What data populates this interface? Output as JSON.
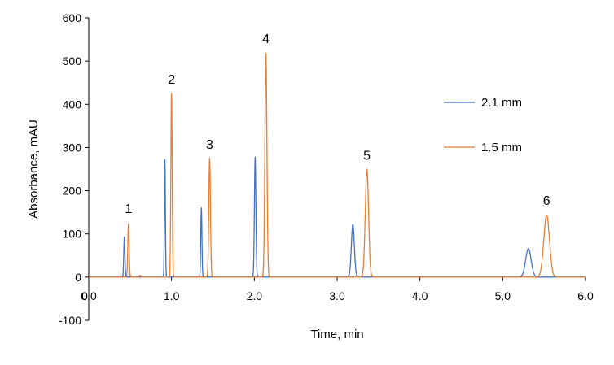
{
  "chart_data": {
    "type": "line",
    "title": "",
    "xlabel": "Time, min",
    "ylabel": "Absorbance, mAU",
    "xlim": [
      0,
      6
    ],
    "ylim": [
      -100,
      600
    ],
    "x_ticks": [
      "0.0",
      "1.0",
      "2.0",
      "3.0",
      "4.0",
      "5.0",
      "6.0"
    ],
    "y_ticks": [
      "-100",
      "0",
      "100",
      "200",
      "300",
      "400",
      "500",
      "600"
    ],
    "x_tick_values": [
      0,
      1,
      2,
      3,
      4,
      5,
      6
    ],
    "y_tick_values": [
      -100,
      0,
      100,
      200,
      300,
      400,
      500,
      600
    ],
    "extra_origin_label": "0",
    "grid": false,
    "legend_position": "right",
    "series": [
      {
        "name": "2.1 mm",
        "color": "#4472C4",
        "peaks": [
          {
            "t": 0.43,
            "h": 93,
            "w": 0.007
          },
          {
            "t": 0.92,
            "h": 272,
            "w": 0.006
          },
          {
            "t": 1.36,
            "h": 160,
            "w": 0.007
          },
          {
            "t": 2.01,
            "h": 278,
            "w": 0.009
          },
          {
            "t": 3.19,
            "h": 122,
            "w": 0.018
          },
          {
            "t": 5.31,
            "h": 66,
            "w": 0.033
          }
        ]
      },
      {
        "name": "1.5 mm",
        "color": "#ED7D31",
        "peaks": [
          {
            "t": 0.48,
            "h": 123,
            "w": 0.008
          },
          {
            "t": 0.62,
            "h": 4,
            "w": 0.01
          },
          {
            "t": 1.0,
            "h": 425,
            "w": 0.008
          },
          {
            "t": 1.46,
            "h": 275,
            "w": 0.01
          },
          {
            "t": 2.14,
            "h": 518,
            "w": 0.012
          },
          {
            "t": 3.36,
            "h": 250,
            "w": 0.02
          },
          {
            "t": 5.53,
            "h": 144,
            "w": 0.034
          }
        ]
      }
    ],
    "annotations": [
      {
        "text": "1",
        "x": 0.48,
        "y": 148
      },
      {
        "text": "2",
        "x": 1.0,
        "y": 448
      },
      {
        "text": "3",
        "x": 1.46,
        "y": 297
      },
      {
        "text": "4",
        "x": 2.14,
        "y": 542
      },
      {
        "text": "5",
        "x": 3.36,
        "y": 272
      },
      {
        "text": "6",
        "x": 5.53,
        "y": 167
      }
    ]
  }
}
